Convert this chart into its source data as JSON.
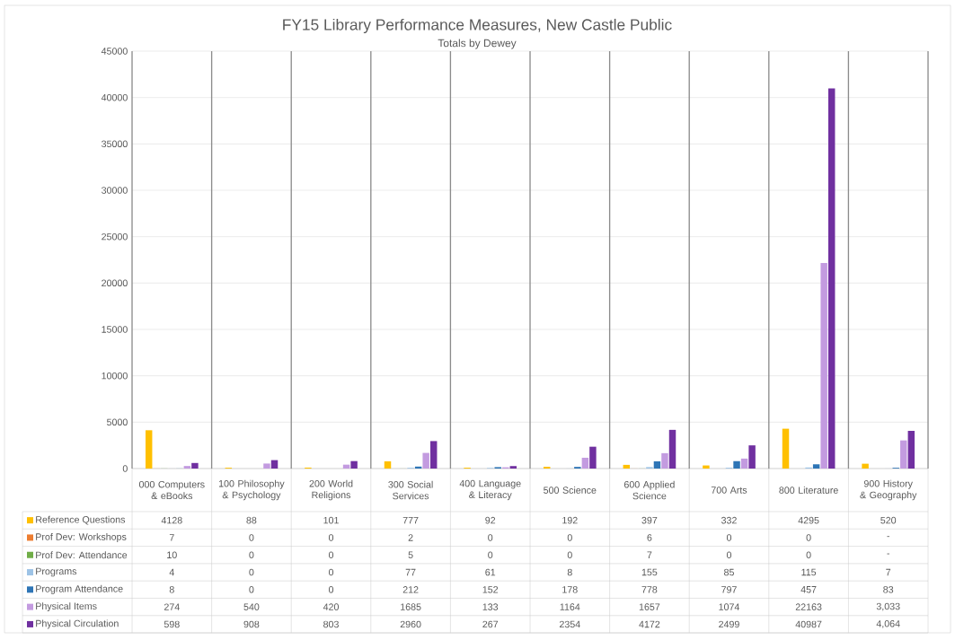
{
  "chart_data": {
    "type": "bar",
    "title": "FY15 Library Performance Measures, New Castle Public",
    "subtitle": "Totals by Dewey",
    "categories": [
      "000 Computers & eBooks",
      "100 Philosophy & Psychology",
      "200 World Religions",
      "300 Social Services",
      "400 Language & Literacy",
      "500 Science",
      "600 Applied Science",
      "700 Arts",
      "800 Literature",
      "900 History & Geography"
    ],
    "series": [
      {
        "name": "Reference Questions",
        "color": "#ffc000",
        "values": [
          4128,
          88,
          101,
          777,
          92,
          192,
          397,
          332,
          4295,
          520
        ],
        "value_labels": [
          "4128",
          "88",
          "101",
          "777",
          "92",
          "192",
          "397",
          "332",
          "4295",
          "520"
        ]
      },
      {
        "name": "Prof Dev: Workshops",
        "color": "#ed7d31",
        "values": [
          7,
          0,
          0,
          2,
          0,
          0,
          6,
          0,
          0,
          null
        ],
        "value_labels": [
          "7",
          "0",
          "0",
          "2",
          "0",
          "0",
          "6",
          "0",
          "0",
          "-"
        ]
      },
      {
        "name": "Prof Dev: Attendance",
        "color": "#70ad47",
        "values": [
          10,
          0,
          0,
          5,
          0,
          0,
          7,
          0,
          0,
          null
        ],
        "value_labels": [
          "10",
          "0",
          "0",
          "5",
          "0",
          "0",
          "7",
          "0",
          "0",
          "-"
        ]
      },
      {
        "name": "Programs",
        "color": "#9dc3e6",
        "values": [
          4,
          0,
          0,
          77,
          61,
          8,
          155,
          85,
          115,
          7
        ],
        "value_labels": [
          "4",
          "0",
          "0",
          "77",
          "61",
          "8",
          "155",
          "85",
          "115",
          "7"
        ]
      },
      {
        "name": "Program Attendance",
        "color": "#2e75b6",
        "values": [
          8,
          0,
          0,
          212,
          152,
          178,
          778,
          797,
          457,
          83
        ],
        "value_labels": [
          "8",
          "0",
          "0",
          "212",
          "152",
          "178",
          "778",
          "797",
          "457",
          "83"
        ]
      },
      {
        "name": "Physical Items",
        "color": "#c39be0",
        "values": [
          274,
          540,
          420,
          1685,
          133,
          1164,
          1657,
          1074,
          22163,
          3033
        ],
        "value_labels": [
          "274",
          "540",
          "420",
          "1685",
          "133",
          "1164",
          "1657",
          "1074",
          "22163",
          "3,033"
        ]
      },
      {
        "name": "Physical Circulation",
        "color": "#7030a0",
        "values": [
          598,
          908,
          803,
          2960,
          267,
          2354,
          4172,
          2499,
          40987,
          4064
        ],
        "value_labels": [
          "598",
          "908",
          "803",
          "2960",
          "267",
          "2354",
          "4172",
          "2499",
          "40987",
          "4,064"
        ]
      }
    ],
    "ylim": [
      0,
      45000
    ],
    "yticks": [
      0,
      5000,
      10000,
      15000,
      20000,
      25000,
      30000,
      35000,
      40000,
      45000
    ],
    "grid": true,
    "legend": "bottom left"
  }
}
